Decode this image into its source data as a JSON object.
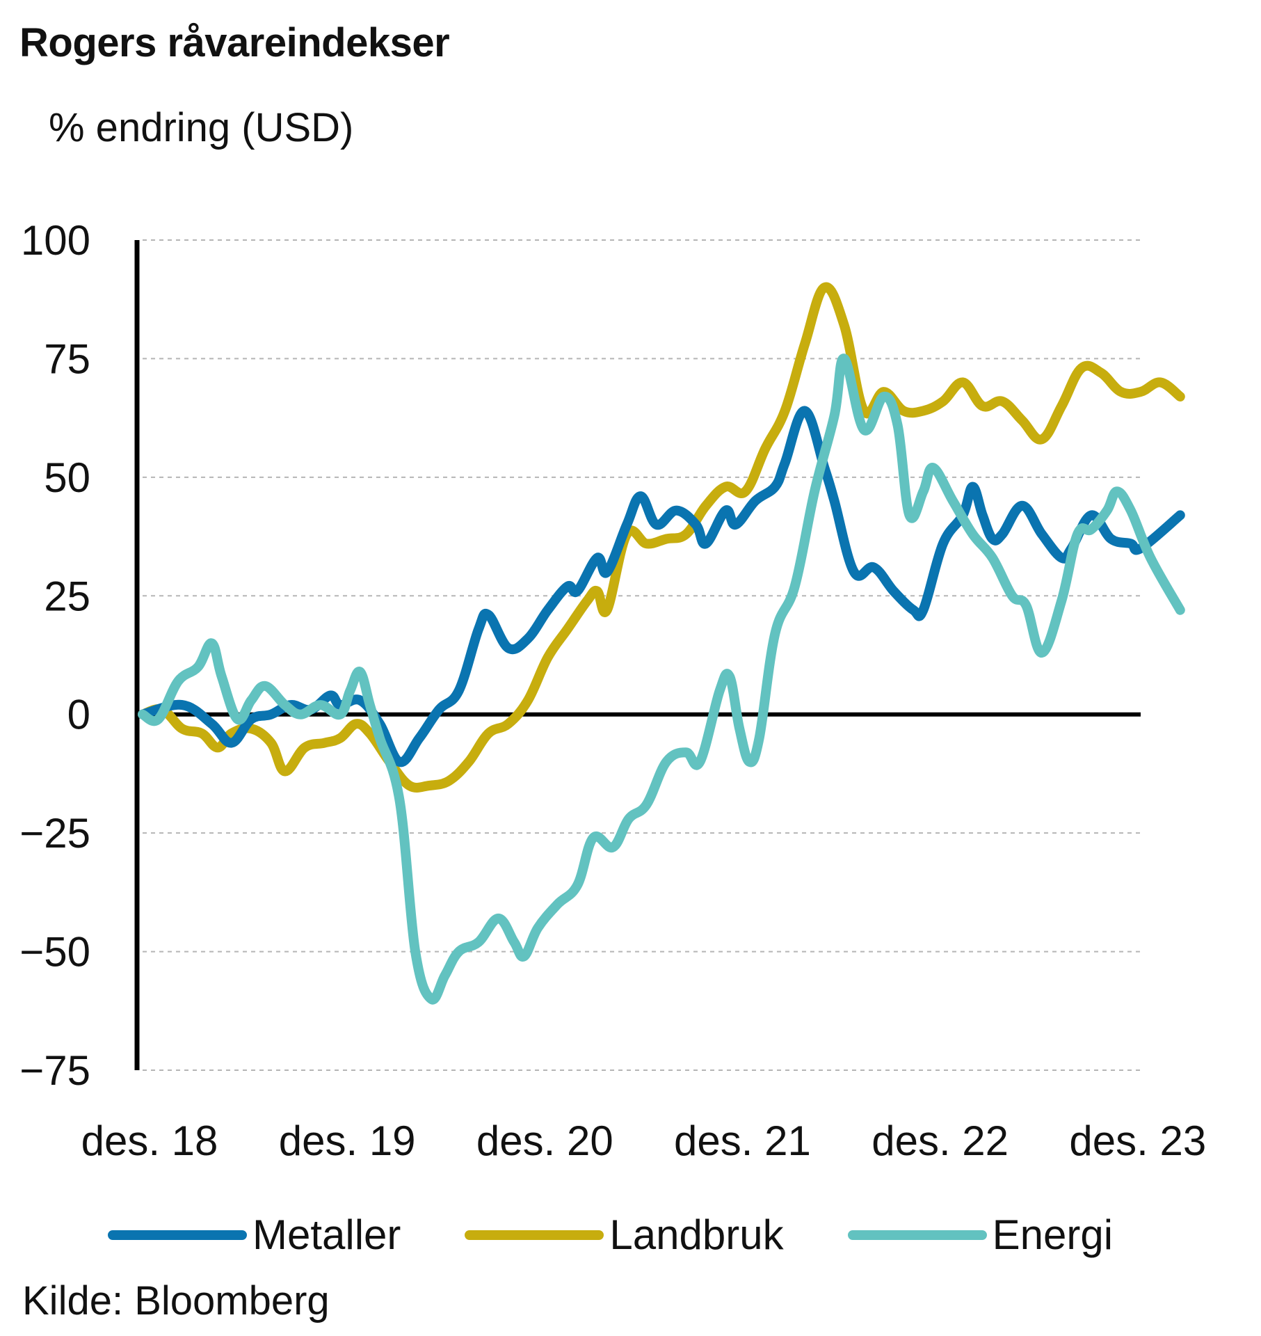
{
  "title": "Rogers råvareindekser",
  "unit_label": "% endring (USD)",
  "source": "Kilde: Bloomberg",
  "chart_data": {
    "type": "line",
    "title": "Rogers råvareindekser",
    "ylabel": "% endring (USD)",
    "xlabel": "",
    "ylim": [
      -75,
      100
    ],
    "yticks": [
      100,
      75,
      50,
      25,
      0,
      -25,
      -50,
      -75
    ],
    "xlim": [
      0,
      5.05
    ],
    "xticks": [
      {
        "label": "des. 18",
        "x": 0
      },
      {
        "label": "des. 19",
        "x": 1
      },
      {
        "label": "des. 20",
        "x": 2
      },
      {
        "label": "des. 21",
        "x": 3
      },
      {
        "label": "des. 22",
        "x": 4
      },
      {
        "label": "des. 23",
        "x": 5
      }
    ],
    "grid": true,
    "legend_position": "bottom",
    "series": [
      {
        "name": "Metaller",
        "color": "#0a74b0",
        "points": [
          [
            0,
            0
          ],
          [
            0.2,
            2
          ],
          [
            0.35,
            -2
          ],
          [
            0.45,
            -6
          ],
          [
            0.55,
            -1
          ],
          [
            0.65,
            0
          ],
          [
            0.75,
            2
          ],
          [
            0.85,
            1
          ],
          [
            0.95,
            4
          ],
          [
            1.0,
            2
          ],
          [
            1.1,
            3
          ],
          [
            1.2,
            -2
          ],
          [
            1.3,
            -10
          ],
          [
            1.4,
            -5
          ],
          [
            1.5,
            1
          ],
          [
            1.6,
            5
          ],
          [
            1.7,
            18
          ],
          [
            1.75,
            21
          ],
          [
            1.85,
            14
          ],
          [
            1.95,
            16
          ],
          [
            2.05,
            22
          ],
          [
            2.15,
            27
          ],
          [
            2.2,
            26
          ],
          [
            2.3,
            33
          ],
          [
            2.35,
            30
          ],
          [
            2.45,
            40
          ],
          [
            2.52,
            46
          ],
          [
            2.6,
            40
          ],
          [
            2.7,
            43
          ],
          [
            2.8,
            40
          ],
          [
            2.85,
            36
          ],
          [
            2.95,
            43
          ],
          [
            3.0,
            40
          ],
          [
            3.1,
            45
          ],
          [
            3.2,
            48
          ],
          [
            3.25,
            53
          ],
          [
            3.35,
            64
          ],
          [
            3.45,
            52
          ],
          [
            3.5,
            45
          ],
          [
            3.6,
            30
          ],
          [
            3.7,
            31
          ],
          [
            3.8,
            26
          ],
          [
            3.9,
            22
          ],
          [
            3.95,
            22
          ],
          [
            4.05,
            36
          ],
          [
            4.15,
            42
          ],
          [
            4.2,
            48
          ],
          [
            4.25,
            42
          ],
          [
            4.3,
            37
          ],
          [
            4.35,
            38
          ],
          [
            4.45,
            44
          ],
          [
            4.55,
            38
          ],
          [
            4.65,
            33
          ],
          [
            4.7,
            35
          ],
          [
            4.8,
            42
          ],
          [
            4.9,
            37
          ],
          [
            5.0,
            36
          ],
          [
            5.05,
            35
          ],
          [
            5.25,
            42
          ]
        ]
      },
      {
        "name": "Landbruk",
        "color": "#c7ad0e",
        "points": [
          [
            0,
            0
          ],
          [
            0.1,
            1
          ],
          [
            0.2,
            -3
          ],
          [
            0.3,
            -4
          ],
          [
            0.38,
            -7
          ],
          [
            0.45,
            -4
          ],
          [
            0.55,
            -3
          ],
          [
            0.65,
            -6
          ],
          [
            0.72,
            -12
          ],
          [
            0.82,
            -7
          ],
          [
            0.92,
            -6
          ],
          [
            1.0,
            -5
          ],
          [
            1.08,
            -2
          ],
          [
            1.15,
            -4
          ],
          [
            1.25,
            -10
          ],
          [
            1.35,
            -15
          ],
          [
            1.45,
            -15
          ],
          [
            1.55,
            -14
          ],
          [
            1.65,
            -10
          ],
          [
            1.75,
            -4
          ],
          [
            1.85,
            -2
          ],
          [
            1.95,
            3
          ],
          [
            2.05,
            12
          ],
          [
            2.15,
            18
          ],
          [
            2.25,
            24
          ],
          [
            2.3,
            26
          ],
          [
            2.35,
            22
          ],
          [
            2.45,
            38
          ],
          [
            2.55,
            36
          ],
          [
            2.65,
            37
          ],
          [
            2.75,
            38
          ],
          [
            2.85,
            44
          ],
          [
            2.95,
            48
          ],
          [
            3.05,
            47
          ],
          [
            3.15,
            56
          ],
          [
            3.25,
            64
          ],
          [
            3.35,
            78
          ],
          [
            3.45,
            90
          ],
          [
            3.55,
            82
          ],
          [
            3.65,
            64
          ],
          [
            3.75,
            68
          ],
          [
            3.85,
            64
          ],
          [
            3.95,
            64
          ],
          [
            4.05,
            66
          ],
          [
            4.15,
            70
          ],
          [
            4.25,
            65
          ],
          [
            4.35,
            66
          ],
          [
            4.45,
            62
          ],
          [
            4.55,
            58
          ],
          [
            4.65,
            65
          ],
          [
            4.75,
            73
          ],
          [
            4.85,
            72
          ],
          [
            4.95,
            68
          ],
          [
            5.05,
            68
          ],
          [
            5.15,
            70
          ],
          [
            5.25,
            67
          ]
        ]
      },
      {
        "name": "Energi",
        "color": "#62c2c0",
        "points": [
          [
            0,
            0
          ],
          [
            0.08,
            -1
          ],
          [
            0.18,
            7
          ],
          [
            0.28,
            10
          ],
          [
            0.35,
            15
          ],
          [
            0.4,
            8
          ],
          [
            0.48,
            -1
          ],
          [
            0.55,
            3
          ],
          [
            0.62,
            6
          ],
          [
            0.72,
            2
          ],
          [
            0.8,
            0
          ],
          [
            0.9,
            2
          ],
          [
            1.0,
            0
          ],
          [
            1.05,
            5
          ],
          [
            1.1,
            9
          ],
          [
            1.15,
            2
          ],
          [
            1.2,
            -5
          ],
          [
            1.3,
            -18
          ],
          [
            1.38,
            -50
          ],
          [
            1.46,
            -60
          ],
          [
            1.53,
            -55
          ],
          [
            1.6,
            -50
          ],
          [
            1.7,
            -48
          ],
          [
            1.8,
            -43
          ],
          [
            1.88,
            -48
          ],
          [
            1.93,
            -51
          ],
          [
            2.0,
            -45
          ],
          [
            2.1,
            -40
          ],
          [
            2.2,
            -36
          ],
          [
            2.28,
            -26
          ],
          [
            2.38,
            -28
          ],
          [
            2.46,
            -22
          ],
          [
            2.55,
            -19
          ],
          [
            2.65,
            -10
          ],
          [
            2.75,
            -8
          ],
          [
            2.82,
            -10
          ],
          [
            2.92,
            5
          ],
          [
            2.97,
            8
          ],
          [
            3.02,
            -3
          ],
          [
            3.07,
            -10
          ],
          [
            3.12,
            -5
          ],
          [
            3.2,
            17
          ],
          [
            3.3,
            27
          ],
          [
            3.4,
            47
          ],
          [
            3.5,
            63
          ],
          [
            3.55,
            75
          ],
          [
            3.65,
            60
          ],
          [
            3.75,
            67
          ],
          [
            3.82,
            61
          ],
          [
            3.88,
            42
          ],
          [
            3.95,
            47
          ],
          [
            4.0,
            52
          ],
          [
            4.1,
            45
          ],
          [
            4.2,
            38
          ],
          [
            4.3,
            33
          ],
          [
            4.4,
            25
          ],
          [
            4.47,
            23
          ],
          [
            4.55,
            13
          ],
          [
            4.65,
            24
          ],
          [
            4.73,
            38
          ],
          [
            4.8,
            39
          ],
          [
            4.88,
            43
          ],
          [
            4.93,
            47
          ],
          [
            5.0,
            43
          ],
          [
            5.1,
            33
          ],
          [
            5.25,
            22
          ]
        ]
      }
    ]
  }
}
